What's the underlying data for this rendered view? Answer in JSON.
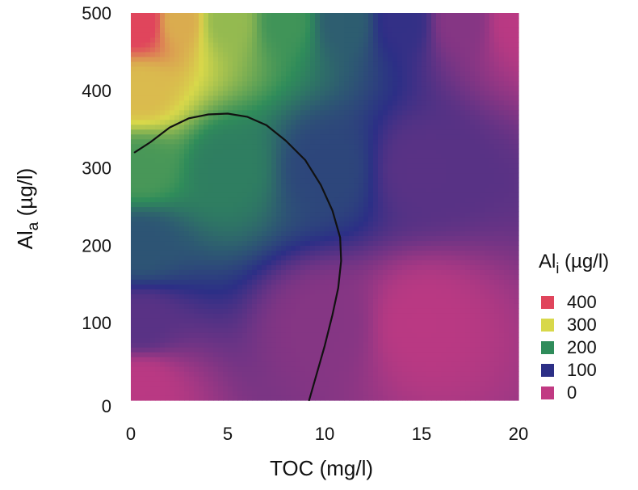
{
  "chart_data": {
    "type": "heatmap",
    "xlabel": "TOC (mg/l)",
    "ylabel": {
      "main": "Al",
      "sub": "a",
      "unit": " (µg/l)"
    },
    "xlim": [
      0,
      20
    ],
    "ylim": [
      0,
      500
    ],
    "x_ticks": [
      0,
      5,
      10,
      15,
      20
    ],
    "y_ticks": [
      0,
      100,
      200,
      300,
      400,
      500
    ],
    "x_tick_labels": [
      "0",
      "5",
      "10",
      "15",
      "20"
    ],
    "y_tick_labels": [
      "0",
      "100",
      "200",
      "300",
      "400",
      "500"
    ],
    "grid": false,
    "colorscale": [
      {
        "value": 0,
        "color": "#c13a83"
      },
      {
        "value": 100,
        "color": "#2c2f86"
      },
      {
        "value": 200,
        "color": "#2f8c5a"
      },
      {
        "value": 300,
        "color": "#d8d84a"
      },
      {
        "value": 400,
        "color": "#e0455c"
      }
    ],
    "legend": {
      "position": "right",
      "title": {
        "main": "Al",
        "sub": "i",
        "unit": " (µg/l)"
      },
      "entries": [
        {
          "label": "400",
          "color": "#e0455c"
        },
        {
          "label": "300",
          "color": "#d8d84a"
        },
        {
          "label": "200",
          "color": "#2f8c5a"
        },
        {
          "label": "100",
          "color": "#2c2f86"
        },
        {
          "label": "0",
          "color": "#c13a83"
        }
      ]
    },
    "contour": {
      "color": "#111111",
      "points": [
        [
          0.2,
          320
        ],
        [
          1.0,
          333
        ],
        [
          2.0,
          352
        ],
        [
          3.0,
          364
        ],
        [
          4.0,
          369
        ],
        [
          5.0,
          370
        ],
        [
          6.0,
          366
        ],
        [
          7.0,
          355
        ],
        [
          8.0,
          335
        ],
        [
          9.0,
          310
        ],
        [
          9.8,
          278
        ],
        [
          10.4,
          245
        ],
        [
          10.8,
          210
        ],
        [
          10.85,
          180
        ],
        [
          10.7,
          145
        ],
        [
          10.4,
          110
        ],
        [
          10.0,
          70
        ],
        [
          9.6,
          35
        ],
        [
          9.2,
          0
        ]
      ]
    },
    "surface_samples": [
      {
        "toc": 0.5,
        "ala": 490,
        "ali": 410
      },
      {
        "toc": 2.5,
        "ala": 490,
        "ali": 330
      },
      {
        "toc": 5.0,
        "ala": 490,
        "ali": 260
      },
      {
        "toc": 8.0,
        "ala": 490,
        "ali": 210
      },
      {
        "toc": 11.0,
        "ala": 490,
        "ali": 150
      },
      {
        "toc": 14.0,
        "ala": 490,
        "ali": 95
      },
      {
        "toc": 17.0,
        "ala": 490,
        "ali": 40
      },
      {
        "toc": 20.0,
        "ala": 490,
        "ali": 5
      },
      {
        "toc": 0.5,
        "ala": 400,
        "ali": 320
      },
      {
        "toc": 0.5,
        "ala": 300,
        "ali": 215
      },
      {
        "toc": 0.5,
        "ala": 200,
        "ali": 140
      },
      {
        "toc": 0.5,
        "ala": 100,
        "ali": 70
      },
      {
        "toc": 0.5,
        "ala": 20,
        "ali": 5
      },
      {
        "toc": 5.0,
        "ala": 300,
        "ali": 185
      },
      {
        "toc": 10.0,
        "ala": 300,
        "ali": 125
      },
      {
        "toc": 10.0,
        "ala": 100,
        "ali": 40
      },
      {
        "toc": 15.0,
        "ala": 300,
        "ali": 70
      },
      {
        "toc": 15.0,
        "ala": 100,
        "ali": 5
      }
    ]
  }
}
